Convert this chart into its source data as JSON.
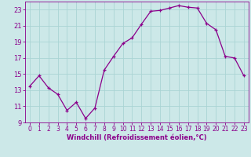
{
  "x": [
    0,
    1,
    2,
    3,
    4,
    5,
    6,
    7,
    8,
    9,
    10,
    11,
    12,
    13,
    14,
    15,
    16,
    17,
    18,
    19,
    20,
    21,
    22,
    23
  ],
  "y": [
    13.5,
    14.8,
    13.3,
    12.5,
    10.5,
    11.5,
    9.5,
    10.8,
    15.5,
    17.2,
    18.8,
    19.5,
    21.2,
    22.8,
    22.9,
    23.2,
    23.5,
    23.3,
    23.2,
    21.3,
    20.5,
    17.2,
    17.0,
    14.8
  ],
  "line_color": "#8B008B",
  "marker": "+",
  "marker_color": "#8B008B",
  "bg_color": "#cce8e8",
  "grid_color": "#aad4d4",
  "xlabel": "Windchill (Refroidissement éolien,°C)",
  "xlabel_color": "#8B008B",
  "ylim": [
    9,
    24
  ],
  "xlim": [
    -0.5,
    23.5
  ],
  "yticks": [
    9,
    11,
    13,
    15,
    17,
    19,
    21,
    23
  ],
  "xticks": [
    0,
    1,
    2,
    3,
    4,
    5,
    6,
    7,
    8,
    9,
    10,
    11,
    12,
    13,
    14,
    15,
    16,
    17,
    18,
    19,
    20,
    21,
    22,
    23
  ],
  "font_color": "#8B008B",
  "tick_fontsize": 5.5,
  "xlabel_fontsize": 6.0,
  "linewidth": 0.9,
  "markersize": 3.0
}
